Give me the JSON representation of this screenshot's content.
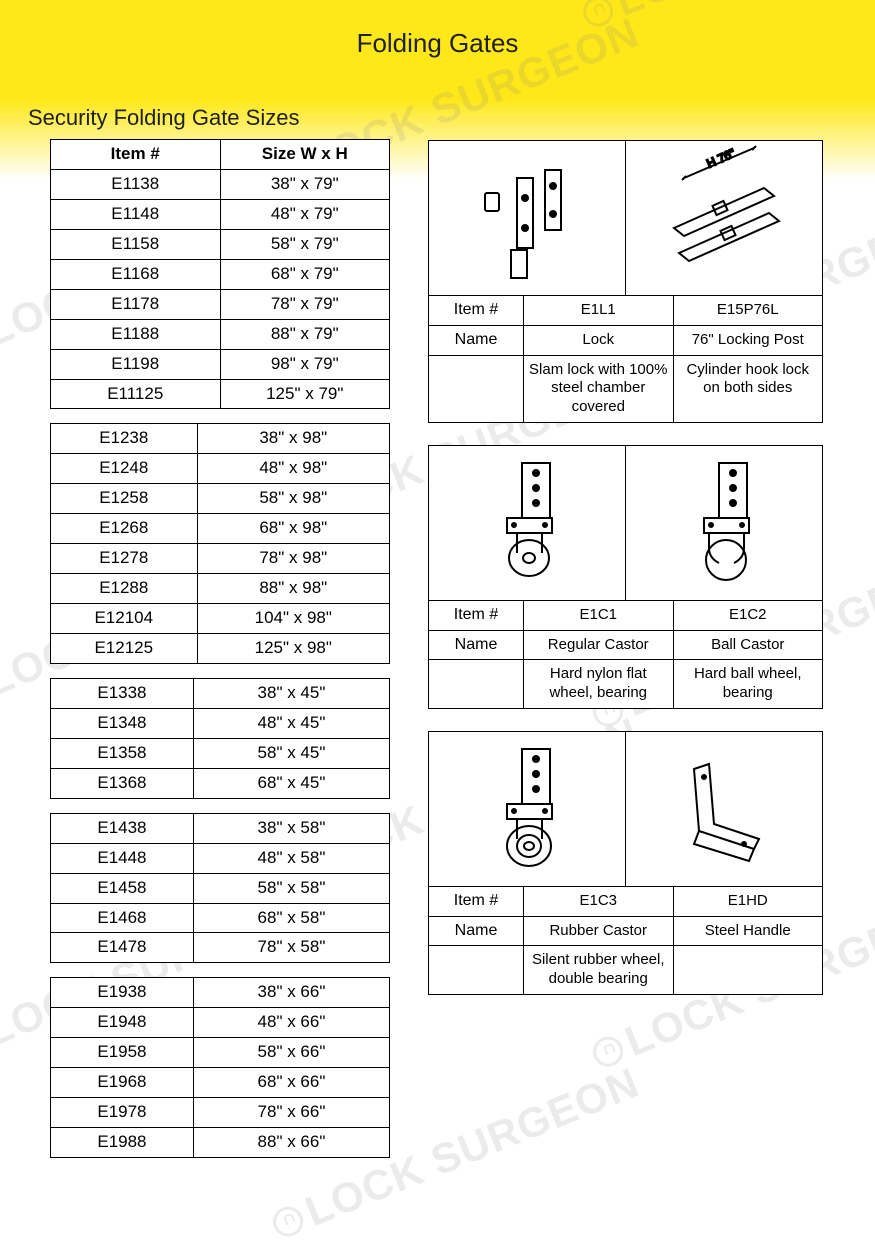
{
  "page": {
    "title": "Folding Gates",
    "section_heading": "Security Folding Gate Sizes",
    "colors": {
      "header_yellow": "#ffe81a",
      "background": "#ffffff",
      "text": "#202020",
      "border": "#000000",
      "watermark": "rgba(130,130,130,0.16)"
    },
    "watermark_text": "LOCK SURGEON"
  },
  "size_table_headers": {
    "item": "Item #",
    "size": "Size W x H"
  },
  "size_groups": [
    [
      {
        "item": "E1138",
        "size": "38\" x 79\""
      },
      {
        "item": "E1148",
        "size": "48\" x 79\""
      },
      {
        "item": "E1158",
        "size": "58\" x 79\""
      },
      {
        "item": "E1168",
        "size": "68\" x 79\""
      },
      {
        "item": "E1178",
        "size": "78\" x 79\""
      },
      {
        "item": "E1188",
        "size": "88\" x 79\""
      },
      {
        "item": "E1198",
        "size": "98\" x 79\""
      },
      {
        "item": "E11125",
        "size": "125\" x 79\""
      }
    ],
    [
      {
        "item": "E1238",
        "size": "38\" x 98\""
      },
      {
        "item": "E1248",
        "size": "48\" x 98\""
      },
      {
        "item": "E1258",
        "size": "58\" x 98\""
      },
      {
        "item": "E1268",
        "size": "68\" x 98\""
      },
      {
        "item": "E1278",
        "size": "78\" x 98\""
      },
      {
        "item": "E1288",
        "size": "88\" x 98\""
      },
      {
        "item": "E12104",
        "size": "104\" x 98\""
      },
      {
        "item": "E12125",
        "size": "125\" x 98\""
      }
    ],
    [
      {
        "item": "E1338",
        "size": "38\" x 45\""
      },
      {
        "item": "E1348",
        "size": "48\" x 45\""
      },
      {
        "item": "E1358",
        "size": "58\" x 45\""
      },
      {
        "item": "E1368",
        "size": "68\" x 45\""
      }
    ],
    [
      {
        "item": "E1438",
        "size": "38\" x 58\""
      },
      {
        "item": "E1448",
        "size": "48\" x 58\""
      },
      {
        "item": "E1458",
        "size": "58\" x 58\""
      },
      {
        "item": "E1468",
        "size": "68\" x 58\""
      },
      {
        "item": "E1478",
        "size": "78\" x 58\""
      }
    ],
    [
      {
        "item": "E1938",
        "size": "38\" x 66\""
      },
      {
        "item": "E1948",
        "size": "48\" x 66\""
      },
      {
        "item": "E1958",
        "size": "58\" x 66\""
      },
      {
        "item": "E1968",
        "size": "68\" x 66\""
      },
      {
        "item": "E1978",
        "size": "78\" x 66\""
      },
      {
        "item": "E1988",
        "size": "88\" x 66\""
      }
    ]
  ],
  "part_labels": {
    "item": "Item #",
    "name": "Name"
  },
  "part_blocks": [
    {
      "a": {
        "item": "E1L1",
        "name": "Lock",
        "desc": "Slam lock with 100% steel chamber covered",
        "dim_label": ""
      },
      "b": {
        "item": "E15P76L",
        "name": "76\" Locking Post",
        "desc": "Cylinder hook lock on both sides",
        "dim_label": "H 76\""
      }
    },
    {
      "a": {
        "item": "E1C1",
        "name": "Regular Castor",
        "desc": "Hard nylon flat wheel, bearing",
        "dim_label": ""
      },
      "b": {
        "item": "E1C2",
        "name": "Ball Castor",
        "desc": "Hard ball wheel, bearing",
        "dim_label": ""
      }
    },
    {
      "a": {
        "item": "E1C3",
        "name": "Rubber Castor",
        "desc": "Silent rubber wheel, double bearing",
        "dim_label": ""
      },
      "b": {
        "item": "E1HD",
        "name": "Steel Handle",
        "desc": "",
        "dim_label": ""
      }
    }
  ]
}
